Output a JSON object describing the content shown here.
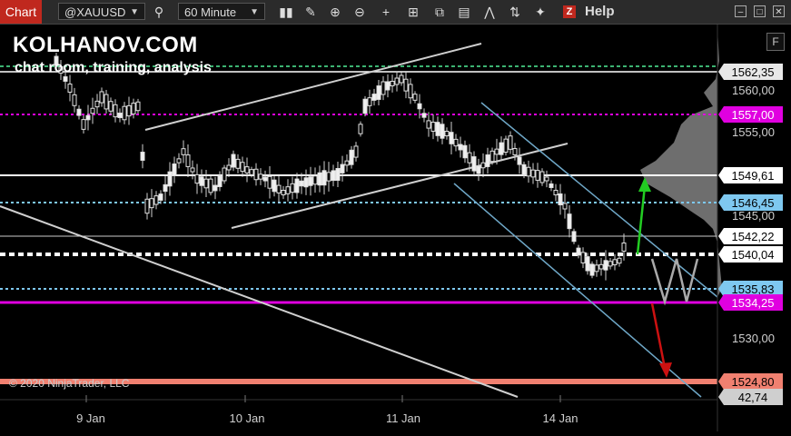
{
  "toolbar": {
    "chart_label": "Chart",
    "instrument": "@XAUUSD",
    "interval": "60 Minute",
    "help_label": "Help",
    "z_label": "Z"
  },
  "chart": {
    "brand": "KOLHANOV.COM",
    "brand_sub": "chat room, training, analysis",
    "copyright": "© 2020 NinjaTrader, LLC",
    "f_label": "F",
    "x_ticks": [
      "9 Jan",
      "10 Jan",
      "11 Jan",
      "14 Jan"
    ],
    "y_ticks": [
      "1560,00",
      "1555,00",
      "1545,00",
      "1530,00"
    ],
    "price_labels": [
      {
        "text": "1562,35",
        "color": "#e8e8e8",
        "fg": "#000"
      },
      {
        "text": "1557,00",
        "color": "#e000e0",
        "fg": "#fff"
      },
      {
        "text": "1549,61",
        "color": "#ffffff",
        "fg": "#000"
      },
      {
        "text": "1546,45",
        "color": "#7ec8f0",
        "fg": "#000"
      },
      {
        "text": "1542,22",
        "color": "#ffffff",
        "fg": "#000"
      },
      {
        "text": "1540,04",
        "color": "#ffffff",
        "fg": "#000"
      },
      {
        "text": "1535,83",
        "color": "#7ec8f0",
        "fg": "#000"
      },
      {
        "text": "1534,25",
        "color": "#e000e0",
        "fg": "#fff"
      },
      {
        "text": "1524,80",
        "color": "#f08070",
        "fg": "#000"
      },
      {
        "text": "42,74",
        "color": "#cfcfcf",
        "fg": "#000"
      }
    ]
  }
}
